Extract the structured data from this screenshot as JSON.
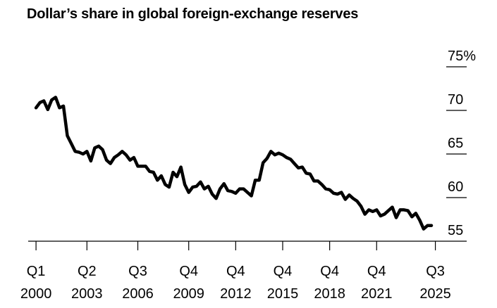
{
  "title": "Dollar’s share in global foreign-exchange reserves",
  "chart_data": {
    "type": "line",
    "title": "Dollar’s share in global foreign-exchange reserves",
    "xlabel": "",
    "ylabel": "",
    "ylim": [
      55,
      75
    ],
    "xlim": [
      1999.5,
      2027.5
    ],
    "y_ticks": [
      {
        "value": 75,
        "label": "75%"
      },
      {
        "value": 70,
        "label": "70"
      },
      {
        "value": 65,
        "label": "65"
      },
      {
        "value": 60,
        "label": "60"
      },
      {
        "value": 55,
        "label": "55"
      }
    ],
    "x_ticks": [
      {
        "value": 2000.0,
        "quarter": "Q1",
        "year": "2000"
      },
      {
        "value": 2003.25,
        "quarter": "Q2",
        "year": "2003"
      },
      {
        "value": 2006.5,
        "quarter": "Q3",
        "year": "2006"
      },
      {
        "value": 2009.75,
        "quarter": "Q4",
        "year": "2009"
      },
      {
        "value": 2012.75,
        "quarter": "Q4",
        "year": "2012"
      },
      {
        "value": 2015.75,
        "quarter": "Q4",
        "year": "2015"
      },
      {
        "value": 2018.75,
        "quarter": "Q4",
        "year": "2018"
      },
      {
        "value": 2021.75,
        "quarter": "Q4",
        "year": "2021"
      },
      {
        "value": 2025.5,
        "quarter": "Q3",
        "year": "2025"
      }
    ],
    "grid": false,
    "series": [
      {
        "color": "#000000",
        "x": [
          2000.0,
          2000.25,
          2000.5,
          2000.75,
          2001.0,
          2001.25,
          2001.5,
          2001.75,
          2002.0,
          2002.25,
          2002.5,
          2002.75,
          2003.0,
          2003.25,
          2003.5,
          2003.75,
          2004.0,
          2004.25,
          2004.5,
          2004.75,
          2005.0,
          2005.25,
          2005.5,
          2005.75,
          2006.0,
          2006.25,
          2006.5,
          2006.75,
          2007.0,
          2007.25,
          2007.5,
          2007.75,
          2008.0,
          2008.25,
          2008.5,
          2008.75,
          2009.0,
          2009.25,
          2009.5,
          2009.75,
          2010.0,
          2010.25,
          2010.5,
          2010.75,
          2011.0,
          2011.25,
          2011.5,
          2011.75,
          2012.0,
          2012.25,
          2012.5,
          2012.75,
          2013.0,
          2013.25,
          2013.5,
          2013.75,
          2014.0,
          2014.25,
          2014.5,
          2014.75,
          2015.0,
          2015.25,
          2015.5,
          2015.75,
          2016.0,
          2016.25,
          2016.5,
          2016.75,
          2017.0,
          2017.25,
          2017.5,
          2017.75,
          2018.0,
          2018.25,
          2018.5,
          2018.75,
          2019.0,
          2019.25,
          2019.5,
          2019.75,
          2020.0,
          2020.25,
          2020.5,
          2020.75,
          2021.0,
          2021.25,
          2021.5,
          2021.75,
          2022.0,
          2022.25,
          2022.5,
          2022.75,
          2023.0,
          2023.25,
          2023.5,
          2023.75,
          2024.0,
          2024.25,
          2024.5,
          2024.75,
          2025.0,
          2025.25
        ],
        "values": [
          70.3,
          70.9,
          71.1,
          70.1,
          71.2,
          71.5,
          70.3,
          70.5,
          67.1,
          66.2,
          65.3,
          65.2,
          65.0,
          65.3,
          64.2,
          65.7,
          65.9,
          65.5,
          64.3,
          63.9,
          64.6,
          64.9,
          65.3,
          64.9,
          64.3,
          64.6,
          63.6,
          63.6,
          63.6,
          63.0,
          62.9,
          62.0,
          62.5,
          61.5,
          61.2,
          62.9,
          62.4,
          63.5,
          61.5,
          60.6,
          61.2,
          61.3,
          61.8,
          61.0,
          61.3,
          60.4,
          59.9,
          61.0,
          61.6,
          60.8,
          60.7,
          60.5,
          61.0,
          61.0,
          60.6,
          60.2,
          62.0,
          62.0,
          64.0,
          64.5,
          65.3,
          64.9,
          65.1,
          64.9,
          64.6,
          64.4,
          63.9,
          63.4,
          63.5,
          62.8,
          62.7,
          61.9,
          61.9,
          61.5,
          61.0,
          60.9,
          60.5,
          60.4,
          60.6,
          59.8,
          60.3,
          59.9,
          59.6,
          59.0,
          58.1,
          58.6,
          58.4,
          58.6,
          57.9,
          58.1,
          58.5,
          58.9,
          57.7,
          58.6,
          58.6,
          58.5,
          57.8,
          58.2,
          57.4,
          56.4,
          56.8,
          56.8
        ]
      }
    ]
  }
}
